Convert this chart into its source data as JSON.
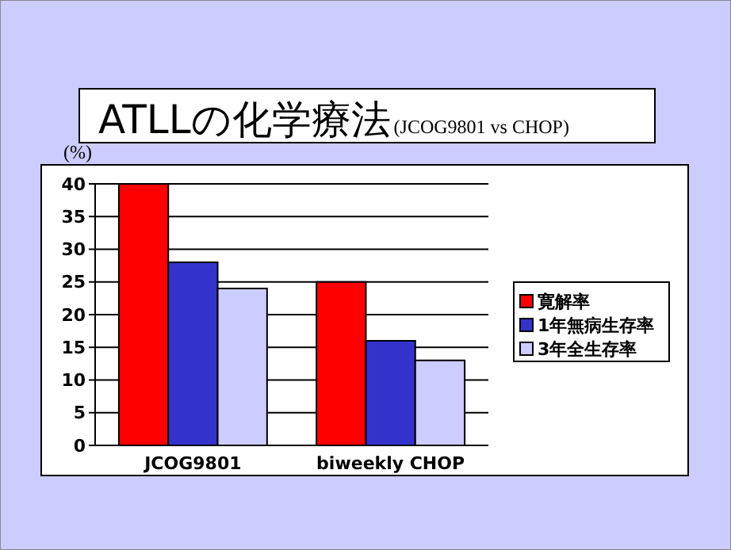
{
  "chart_data": {
    "type": "bar",
    "title": "ATLLの化学療法",
    "subtitle": "(JCOG9801 vs CHOP)",
    "ylabel": "(%)",
    "categories": [
      "JCOG9801",
      "biweekly CHOP"
    ],
    "series": [
      {
        "name": "寛解率",
        "color": "#ff0000",
        "values": [
          40,
          25
        ]
      },
      {
        "name": "1年無病生存率",
        "color": "#3333cc",
        "values": [
          28,
          16
        ]
      },
      {
        "name": "3年全生存率",
        "color": "#ccccff",
        "values": [
          24,
          13
        ]
      }
    ],
    "ylim": [
      0,
      40
    ],
    "yticks": [
      0,
      5,
      10,
      15,
      20,
      25,
      30,
      35,
      40
    ],
    "grid": "y",
    "legend": "right"
  }
}
